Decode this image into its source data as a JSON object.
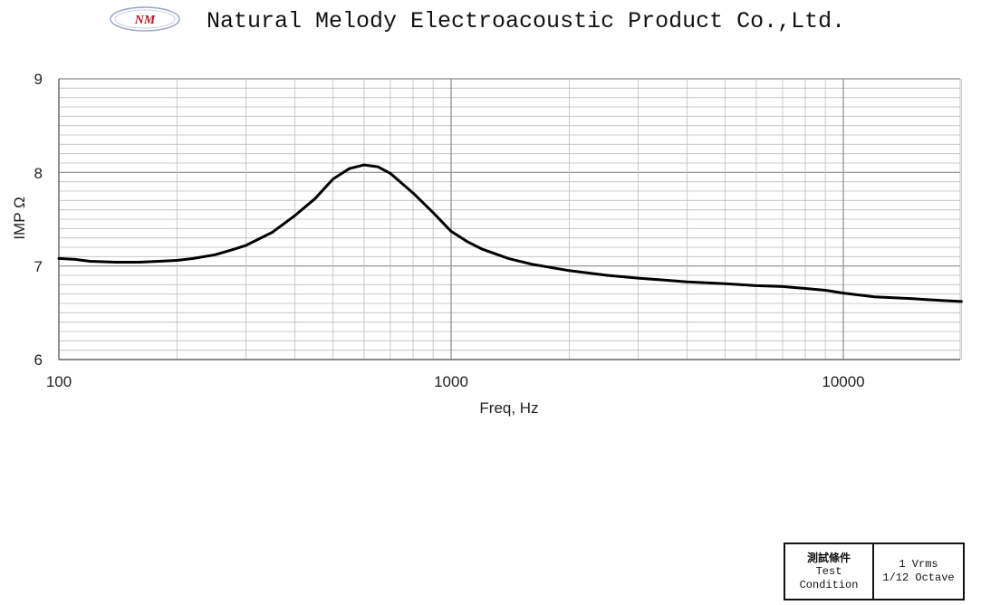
{
  "header": {
    "logo_text": "NM",
    "company_name": "Natural Melody Electroacoustic Product Co.,Ltd."
  },
  "colors": {
    "curve": "#000000",
    "grid_minor": "#bdbdbd",
    "grid_major": "#8a8a8a",
    "logo_red": "#c0142a"
  },
  "chart_data": {
    "type": "line",
    "title": "",
    "xlabel": "Freq, Hz",
    "ylabel": "IMP Ω",
    "x_scale": "log",
    "xlim": [
      100,
      20000
    ],
    "ylim": [
      6,
      9
    ],
    "x_ticks": [
      "100",
      "1000",
      "10000"
    ],
    "y_ticks": [
      "6",
      "7",
      "8",
      "9"
    ],
    "grid": true,
    "series": [
      {
        "x": [
          100,
          110,
          120,
          140,
          160,
          180,
          200,
          220,
          250,
          280,
          300,
          350,
          400,
          450,
          500,
          550,
          600,
          650,
          700,
          800,
          900,
          1000,
          1100,
          1200,
          1400,
          1600,
          2000,
          2500,
          3000,
          3500,
          4000,
          5000,
          6000,
          7000,
          8000,
          9000,
          10000,
          12000,
          15000,
          18000,
          20000
        ],
        "y": [
          7.08,
          7.07,
          7.05,
          7.04,
          7.04,
          7.05,
          7.06,
          7.08,
          7.12,
          7.18,
          7.22,
          7.36,
          7.54,
          7.72,
          7.93,
          8.04,
          8.08,
          8.06,
          7.99,
          7.78,
          7.57,
          7.37,
          7.26,
          7.18,
          7.08,
          7.02,
          6.95,
          6.9,
          6.87,
          6.85,
          6.83,
          6.81,
          6.79,
          6.78,
          6.76,
          6.74,
          6.71,
          6.67,
          6.65,
          6.63,
          6.62
        ]
      }
    ]
  },
  "test_condition": {
    "label_cn": "測試條件",
    "label_en_1": "Test",
    "label_en_2": "Condition",
    "value_1": "1 Vrms",
    "value_2": "1/12 Octave"
  }
}
